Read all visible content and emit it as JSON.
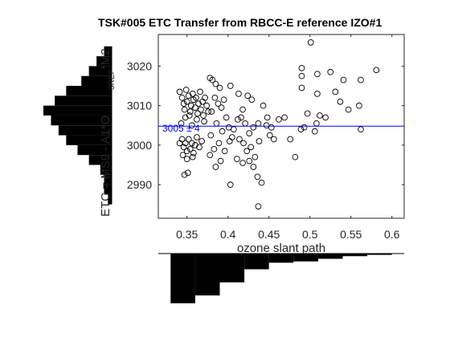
{
  "chart_data": {
    "type": "scatter",
    "title": "TSK#005 ETC Transfer from RBCC-E reference IZO#1",
    "xlabel": "ozone slant path",
    "ylabel": {
      "main": "ETC = MS9 - A1*O",
      "sub_ref": "3REF",
      "tail": "*M2"
    },
    "xlim": [
      0.315,
      0.615
    ],
    "ylim": [
      2981.5,
      3028
    ],
    "xticks": [
      0.35,
      0.4,
      0.45,
      0.5,
      0.55,
      0.6
    ],
    "xtick_labels": [
      "0.35",
      "0.4",
      "0.45",
      "0.5",
      "0.55",
      "0.6"
    ],
    "yticks": [
      2990,
      3000,
      3010,
      3020
    ],
    "ytick_labels": [
      "2990",
      "3000",
      "3010",
      "3020"
    ],
    "grid": false,
    "reference_line": {
      "y": 3004.8,
      "color": "#0000ff"
    },
    "annotation": {
      "text": "3005 ± 4",
      "color": "#0000ff"
    },
    "series": [
      {
        "marker": "open-circle",
        "color": "#000000",
        "points": [
          [
            0.341,
            3013.5
          ],
          [
            0.344,
            3012.0
          ],
          [
            0.346,
            3010.5
          ],
          [
            0.347,
            3009.0
          ],
          [
            0.349,
            3014.0
          ],
          [
            0.35,
            3011.0
          ],
          [
            0.352,
            3012.5
          ],
          [
            0.354,
            3008.5
          ],
          [
            0.355,
            3010.0
          ],
          [
            0.357,
            3013.0
          ],
          [
            0.358,
            3011.5
          ],
          [
            0.36,
            3009.5
          ],
          [
            0.361,
            3012.0
          ],
          [
            0.363,
            3008.0
          ],
          [
            0.364,
            3010.5
          ],
          [
            0.366,
            3013.5
          ],
          [
            0.367,
            3009.0
          ],
          [
            0.369,
            3011.0
          ],
          [
            0.37,
            3007.5
          ],
          [
            0.372,
            3012.0
          ],
          [
            0.374,
            3010.0
          ],
          [
            0.376,
            3008.5
          ],
          [
            0.348,
            3007.0
          ],
          [
            0.353,
            3007.5
          ],
          [
            0.362,
            3006.5
          ],
          [
            0.371,
            3006.0
          ],
          [
            0.343,
            3005.5
          ],
          [
            0.356,
            3005.0
          ],
          [
            0.341,
            3000.5
          ],
          [
            0.344,
            3001.5
          ],
          [
            0.346,
            2999.5
          ],
          [
            0.348,
            3000.5
          ],
          [
            0.35,
            2998.5
          ],
          [
            0.352,
            3001.5
          ],
          [
            0.354,
            2999.0
          ],
          [
            0.356,
            3000.5
          ],
          [
            0.358,
            2998.0
          ],
          [
            0.36,
            3000.0
          ],
          [
            0.362,
            3002.0
          ],
          [
            0.345,
            2997.5
          ],
          [
            0.35,
            2996.5
          ],
          [
            0.357,
            2997.0
          ],
          [
            0.347,
            2992.5
          ],
          [
            0.351,
            2993.0
          ],
          [
            0.368,
            3001.0
          ],
          [
            0.365,
            2999.5
          ],
          [
            0.378,
            3017.0
          ],
          [
            0.381,
            3016.5
          ],
          [
            0.385,
            3015.5
          ],
          [
            0.39,
            3014.5
          ],
          [
            0.384,
            3012.0
          ],
          [
            0.388,
            3010.5
          ],
          [
            0.392,
            3009.5
          ],
          [
            0.38,
            3008.5
          ],
          [
            0.395,
            3011.5
          ],
          [
            0.386,
            3005.5
          ],
          [
            0.398,
            3007.0
          ],
          [
            0.393,
            3003.5
          ],
          [
            0.401,
            3004.5
          ],
          [
            0.405,
            3002.0
          ],
          [
            0.379,
            3002.5
          ],
          [
            0.383,
            2999.0
          ],
          [
            0.389,
            3000.5
          ],
          [
            0.402,
            3001.0
          ],
          [
            0.378,
            2997.5
          ],
          [
            0.385,
            2994.5
          ],
          [
            0.391,
            2996.0
          ],
          [
            0.396,
            2998.5
          ],
          [
            0.403,
            2990.0
          ],
          [
            0.403,
            3015.0
          ],
          [
            0.413,
            3013.0
          ],
          [
            0.418,
            3009.0
          ],
          [
            0.424,
            3012.5
          ],
          [
            0.429,
            3011.5
          ],
          [
            0.412,
            3006.5
          ],
          [
            0.416,
            3007.0
          ],
          [
            0.421,
            3005.5
          ],
          [
            0.407,
            3004.0
          ],
          [
            0.426,
            3003.0
          ],
          [
            0.431,
            3004.5
          ],
          [
            0.437,
            3005.5
          ],
          [
            0.414,
            3001.5
          ],
          [
            0.419,
            3000.5
          ],
          [
            0.423,
            2998.5
          ],
          [
            0.428,
            2999.5
          ],
          [
            0.433,
            2997.0
          ],
          [
            0.438,
            3001.0
          ],
          [
            0.411,
            2996.5
          ],
          [
            0.418,
            2995.5
          ],
          [
            0.426,
            2996.0
          ],
          [
            0.431,
            2994.5
          ],
          [
            0.436,
            2992.0
          ],
          [
            0.441,
            2990.5
          ],
          [
            0.437,
            2984.5
          ],
          [
            0.443,
            3010.0
          ],
          [
            0.448,
            3007.0
          ],
          [
            0.451,
            3002.5
          ],
          [
            0.456,
            3001.5
          ],
          [
            0.462,
            3006.5
          ],
          [
            0.469,
            3007.0
          ],
          [
            0.476,
            3001.5
          ],
          [
            0.482,
            2997.0
          ],
          [
            0.453,
            3004.5
          ],
          [
            0.447,
            3005.0
          ],
          [
            0.489,
            3004.0
          ],
          [
            0.493,
            3004.5
          ],
          [
            0.497,
            3008.0
          ],
          [
            0.49,
            3019.5
          ],
          [
            0.49,
            3017.5
          ],
          [
            0.49,
            3014.5
          ],
          [
            0.501,
            3026.0
          ],
          [
            0.509,
            3018.0
          ],
          [
            0.509,
            3013.0
          ],
          [
            0.512,
            3007.5
          ],
          [
            0.519,
            3007.0
          ],
          [
            0.525,
            3018.5
          ],
          [
            0.531,
            3013.5
          ],
          [
            0.537,
            3011.0
          ],
          [
            0.541,
            3016.5
          ],
          [
            0.547,
            3009.0
          ],
          [
            0.562,
            3016.5
          ],
          [
            0.56,
            3010.0
          ],
          [
            0.581,
            3019.0
          ],
          [
            0.562,
            3004.0
          ],
          [
            0.506,
            3003.5
          ],
          [
            0.508,
            3005.5
          ]
        ]
      }
    ],
    "marginal_y_hist": {
      "bin_edges": [
        2985,
        2987.5,
        2990,
        2992.5,
        2995,
        2997.5,
        3000,
        3002.5,
        3005,
        3007.5,
        3010,
        3012.5,
        3015,
        3017.5,
        3020,
        3022.5,
        3025
      ],
      "counts": [
        1,
        2,
        2,
        3,
        6,
        9,
        12,
        14,
        16,
        18,
        15,
        12,
        8,
        6,
        4,
        2
      ]
    },
    "marginal_x_hist": {
      "bin_edges": [
        0.33,
        0.36,
        0.39,
        0.42,
        0.45,
        0.48,
        0.51,
        0.54,
        0.57,
        0.6
      ],
      "counts": [
        38,
        32,
        22,
        12,
        7,
        6,
        4,
        2,
        1
      ]
    }
  }
}
